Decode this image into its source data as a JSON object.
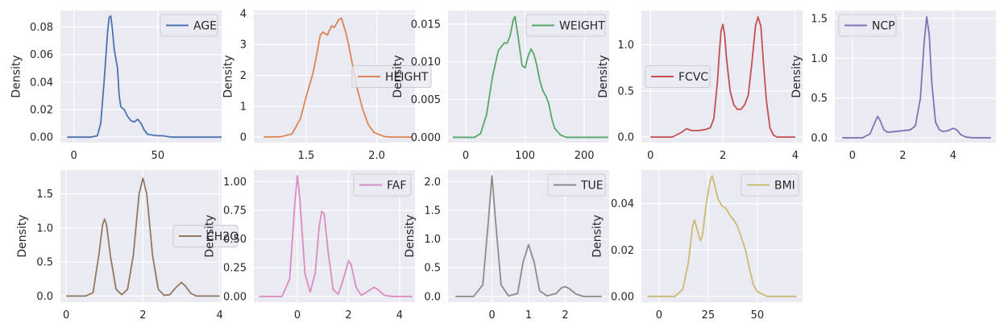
{
  "figure": {
    "theme_background": "#EAEAF2",
    "grid_color": "#FFFFFF"
  },
  "chart_data": [
    {
      "type": "line",
      "name": "AGE",
      "color": "#4C72B0",
      "ylabel": "Density",
      "xlim": [
        -8,
        88
      ],
      "ylim": [
        -0.004,
        0.092
      ],
      "xticks": [
        0,
        50
      ],
      "xtick_labels": [
        "0",
        "50"
      ],
      "yticks": [
        0,
        0.02,
        0.04,
        0.06,
        0.08
      ],
      "ytick_labels": [
        "0.00",
        "0.02",
        "0.04",
        "0.06",
        "0.08"
      ],
      "legend": {
        "label": "AGE",
        "loc": "top-right"
      },
      "grid": true,
      "points": [
        [
          -4,
          0
        ],
        [
          10,
          0
        ],
        [
          14,
          0.001
        ],
        [
          16,
          0.01
        ],
        [
          18,
          0.04
        ],
        [
          20,
          0.075
        ],
        [
          21,
          0.087
        ],
        [
          22,
          0.088
        ],
        [
          23,
          0.078
        ],
        [
          24,
          0.064
        ],
        [
          26,
          0.05
        ],
        [
          27,
          0.03
        ],
        [
          28,
          0.022
        ],
        [
          30,
          0.02
        ],
        [
          32,
          0.015
        ],
        [
          34,
          0.012
        ],
        [
          36,
          0.011
        ],
        [
          38,
          0.013
        ],
        [
          40,
          0.01
        ],
        [
          42,
          0.005
        ],
        [
          44,
          0.002
        ],
        [
          50,
          0.001
        ],
        [
          53,
          0.001
        ],
        [
          58,
          0
        ],
        [
          88,
          0
        ]
      ]
    },
    {
      "type": "line",
      "name": "HEIGHT",
      "color": "#DD8452",
      "ylabel": "Density",
      "xlim": [
        1.13,
        2.27
      ],
      "ylim": [
        -0.18,
        4.1
      ],
      "xticks": [
        1.5,
        2.0
      ],
      "xtick_labels": [
        "1.5",
        "2.0"
      ],
      "yticks": [
        0,
        1,
        2,
        3,
        4
      ],
      "ytick_labels": [
        "0",
        "1",
        "2",
        "3",
        "4"
      ],
      "legend": {
        "label": "HEIGHT",
        "loc": "center-right"
      },
      "grid": true,
      "points": [
        [
          1.2,
          0
        ],
        [
          1.32,
          0.01
        ],
        [
          1.4,
          0.1
        ],
        [
          1.46,
          0.6
        ],
        [
          1.5,
          1.3
        ],
        [
          1.55,
          2.1
        ],
        [
          1.58,
          2.8
        ],
        [
          1.6,
          3.3
        ],
        [
          1.62,
          3.4
        ],
        [
          1.65,
          3.3
        ],
        [
          1.68,
          3.6
        ],
        [
          1.7,
          3.55
        ],
        [
          1.73,
          3.8
        ],
        [
          1.75,
          3.85
        ],
        [
          1.78,
          3.4
        ],
        [
          1.8,
          3.0
        ],
        [
          1.83,
          2.3
        ],
        [
          1.86,
          1.6
        ],
        [
          1.9,
          0.9
        ],
        [
          1.94,
          0.4
        ],
        [
          1.98,
          0.15
        ],
        [
          2.05,
          0.02
        ],
        [
          2.1,
          0
        ],
        [
          2.25,
          0
        ]
      ]
    },
    {
      "type": "line",
      "name": "WEIGHT",
      "color": "#55A868",
      "ylabel": "Density",
      "xlim": [
        -30,
        242
      ],
      "ylim": [
        -0.0007,
        0.0168
      ],
      "xticks": [
        0,
        100,
        200
      ],
      "xtick_labels": [
        "0",
        "100",
        "200"
      ],
      "yticks": [
        0,
        0.005,
        0.01,
        0.015
      ],
      "ytick_labels": [
        "0.000",
        "0.005",
        "0.010",
        "0.015"
      ],
      "legend": {
        "label": "WEIGHT",
        "loc": "top-right"
      },
      "grid": true,
      "points": [
        [
          -22,
          0
        ],
        [
          15,
          0
        ],
        [
          25,
          0.0005
        ],
        [
          35,
          0.003
        ],
        [
          45,
          0.008
        ],
        [
          55,
          0.0115
        ],
        [
          65,
          0.0125
        ],
        [
          70,
          0.0125
        ],
        [
          75,
          0.0135
        ],
        [
          80,
          0.0155
        ],
        [
          83,
          0.016
        ],
        [
          88,
          0.0135
        ],
        [
          95,
          0.0095
        ],
        [
          100,
          0.0092
        ],
        [
          105,
          0.0107
        ],
        [
          110,
          0.0117
        ],
        [
          115,
          0.011
        ],
        [
          120,
          0.0095
        ],
        [
          125,
          0.0075
        ],
        [
          130,
          0.0062
        ],
        [
          135,
          0.0055
        ],
        [
          140,
          0.0045
        ],
        [
          145,
          0.0025
        ],
        [
          150,
          0.0012
        ],
        [
          160,
          0.0003
        ],
        [
          170,
          0
        ],
        [
          240,
          0
        ]
      ]
    },
    {
      "type": "line",
      "name": "FCVC",
      "color": "#C44E52",
      "ylabel": "Density",
      "xlim": [
        -0.25,
        4.2
      ],
      "ylim": [
        -0.06,
        1.37
      ],
      "xticks": [
        0,
        2,
        4
      ],
      "xtick_labels": [
        "0",
        "2",
        "4"
      ],
      "yticks": [
        0,
        0.5,
        1.0
      ],
      "ytick_labels": [
        "0.0",
        "0.5",
        "1.0"
      ],
      "legend": {
        "label": "FCVC",
        "loc": "center-left"
      },
      "grid": true,
      "points": [
        [
          0,
          0
        ],
        [
          0.6,
          0
        ],
        [
          0.85,
          0.05
        ],
        [
          1.0,
          0.09
        ],
        [
          1.15,
          0.07
        ],
        [
          1.3,
          0.07
        ],
        [
          1.5,
          0.08
        ],
        [
          1.65,
          0.1
        ],
        [
          1.75,
          0.2
        ],
        [
          1.85,
          0.6
        ],
        [
          1.9,
          0.9
        ],
        [
          1.95,
          1.15
        ],
        [
          2.0,
          1.22
        ],
        [
          2.05,
          1.1
        ],
        [
          2.1,
          0.85
        ],
        [
          2.2,
          0.5
        ],
        [
          2.3,
          0.35
        ],
        [
          2.4,
          0.3
        ],
        [
          2.5,
          0.3
        ],
        [
          2.6,
          0.35
        ],
        [
          2.7,
          0.45
        ],
        [
          2.8,
          0.8
        ],
        [
          2.9,
          1.2
        ],
        [
          2.97,
          1.3
        ],
        [
          3.05,
          1.2
        ],
        [
          3.12,
          0.8
        ],
        [
          3.2,
          0.4
        ],
        [
          3.3,
          0.1
        ],
        [
          3.4,
          0.02
        ],
        [
          3.5,
          0
        ],
        [
          4.0,
          0
        ]
      ]
    },
    {
      "type": "line",
      "name": "NCP",
      "color": "#8172B3",
      "ylabel": "Density",
      "xlim": [
        -0.7,
        5.7
      ],
      "ylim": [
        -0.06,
        1.6
      ],
      "xticks": [
        0,
        2,
        4
      ],
      "xtick_labels": [
        "0",
        "2",
        "4"
      ],
      "yticks": [
        0,
        0.5,
        1.0,
        1.5
      ],
      "ytick_labels": [
        "0.0",
        "0.5",
        "1.0",
        "1.5"
      ],
      "legend": {
        "label": "NCP",
        "loc": "top-left"
      },
      "grid": true,
      "points": [
        [
          -0.4,
          0
        ],
        [
          0.4,
          0
        ],
        [
          0.7,
          0.05
        ],
        [
          0.9,
          0.2
        ],
        [
          1.0,
          0.27
        ],
        [
          1.1,
          0.22
        ],
        [
          1.25,
          0.1
        ],
        [
          1.4,
          0.07
        ],
        [
          1.7,
          0.08
        ],
        [
          2.0,
          0.09
        ],
        [
          2.3,
          0.1
        ],
        [
          2.5,
          0.15
        ],
        [
          2.7,
          0.5
        ],
        [
          2.85,
          1.2
        ],
        [
          2.95,
          1.52
        ],
        [
          3.05,
          1.3
        ],
        [
          3.15,
          0.7
        ],
        [
          3.3,
          0.2
        ],
        [
          3.45,
          0.1
        ],
        [
          3.6,
          0.08
        ],
        [
          3.8,
          0.09
        ],
        [
          4.0,
          0.12
        ],
        [
          4.15,
          0.1
        ],
        [
          4.3,
          0.04
        ],
        [
          4.5,
          0.01
        ],
        [
          4.8,
          0
        ],
        [
          5.5,
          0
        ]
      ]
    },
    {
      "type": "line",
      "name": "CH2O",
      "color": "#937860",
      "ylabel": "Density",
      "xlim": [
        -0.15,
        4.05
      ],
      "ylim": [
        -0.09,
        1.85
      ],
      "xticks": [
        0,
        2,
        4
      ],
      "xtick_labels": [
        "0",
        "2",
        "4"
      ],
      "yticks": [
        0,
        0.5,
        1.0,
        1.5
      ],
      "ytick_labels": [
        "0.0",
        "0.5",
        "1.0",
        "1.5"
      ],
      "legend": {
        "label": "CH2O",
        "loc": "center-right"
      },
      "grid": true,
      "points": [
        [
          0,
          0
        ],
        [
          0.5,
          0
        ],
        [
          0.7,
          0.05
        ],
        [
          0.85,
          0.6
        ],
        [
          0.95,
          1.05
        ],
        [
          1.0,
          1.13
        ],
        [
          1.05,
          1.05
        ],
        [
          1.15,
          0.6
        ],
        [
          1.3,
          0.1
        ],
        [
          1.45,
          0.02
        ],
        [
          1.6,
          0.1
        ],
        [
          1.75,
          0.6
        ],
        [
          1.9,
          1.5
        ],
        [
          2.0,
          1.73
        ],
        [
          2.1,
          1.5
        ],
        [
          2.25,
          0.6
        ],
        [
          2.4,
          0.1
        ],
        [
          2.55,
          0.01
        ],
        [
          2.7,
          0.02
        ],
        [
          2.85,
          0.12
        ],
        [
          3.0,
          0.2
        ],
        [
          3.1,
          0.15
        ],
        [
          3.25,
          0.04
        ],
        [
          3.4,
          0
        ],
        [
          4.0,
          0
        ]
      ]
    },
    {
      "type": "line",
      "name": "FAF",
      "color": "#DA8BC3",
      "ylabel": "Density",
      "xlim": [
        -1.7,
        4.6
      ],
      "ylim": [
        -0.05,
        1.1
      ],
      "xticks": [
        0,
        2,
        4
      ],
      "xtick_labels": [
        "0",
        "2",
        "4"
      ],
      "yticks": [
        0,
        0.25,
        0.5,
        0.75,
        1.0
      ],
      "ytick_labels": [
        "0.00",
        "0.25",
        "0.50",
        "0.75",
        "1.00"
      ],
      "legend": {
        "label": "FAF",
        "loc": "top-right"
      },
      "grid": true,
      "points": [
        [
          -1.5,
          0
        ],
        [
          -0.6,
          0
        ],
        [
          -0.3,
          0.15
        ],
        [
          -0.1,
          0.8
        ],
        [
          0,
          1.05
        ],
        [
          0.1,
          0.85
        ],
        [
          0.3,
          0.2
        ],
        [
          0.5,
          0.04
        ],
        [
          0.7,
          0.2
        ],
        [
          0.85,
          0.6
        ],
        [
          0.95,
          0.74
        ],
        [
          1.05,
          0.72
        ],
        [
          1.2,
          0.4
        ],
        [
          1.4,
          0.06
        ],
        [
          1.6,
          0.02
        ],
        [
          1.8,
          0.15
        ],
        [
          2.0,
          0.31
        ],
        [
          2.1,
          0.28
        ],
        [
          2.3,
          0.08
        ],
        [
          2.5,
          0.01
        ],
        [
          2.8,
          0.05
        ],
        [
          3.0,
          0.08
        ],
        [
          3.15,
          0.06
        ],
        [
          3.4,
          0.01
        ],
        [
          3.7,
          0
        ],
        [
          4.5,
          0
        ]
      ]
    },
    {
      "type": "line",
      "name": "TUE",
      "color": "#8C8C8C",
      "ylabel": "Density",
      "xlim": [
        -1.2,
        3.2
      ],
      "ylim": [
        -0.1,
        2.2
      ],
      "xticks": [
        0,
        1,
        2
      ],
      "xtick_labels": [
        "0",
        "1",
        "2"
      ],
      "yticks": [
        0,
        0.5,
        1.0,
        1.5,
        2.0
      ],
      "ytick_labels": [
        "0.0",
        "0.5",
        "1.0",
        "1.5",
        "2.0"
      ],
      "legend": {
        "label": "TUE",
        "loc": "top-right"
      },
      "grid": true,
      "points": [
        [
          -1.0,
          0
        ],
        [
          -0.5,
          0
        ],
        [
          -0.25,
          0.2
        ],
        [
          -0.1,
          1.3
        ],
        [
          0,
          2.1
        ],
        [
          0.1,
          1.3
        ],
        [
          0.25,
          0.2
        ],
        [
          0.45,
          0.01
        ],
        [
          0.7,
          0.05
        ],
        [
          0.85,
          0.6
        ],
        [
          1.0,
          0.9
        ],
        [
          1.15,
          0.6
        ],
        [
          1.3,
          0.1
        ],
        [
          1.5,
          0.01
        ],
        [
          1.75,
          0.05
        ],
        [
          1.9,
          0.15
        ],
        [
          2.0,
          0.17
        ],
        [
          2.1,
          0.14
        ],
        [
          2.3,
          0.04
        ],
        [
          2.5,
          0
        ],
        [
          3.0,
          0
        ]
      ]
    },
    {
      "type": "line",
      "name": "BMI",
      "color": "#CCB974",
      "ylabel": "Density",
      "xlim": [
        -9,
        73
      ],
      "ylim": [
        -0.0025,
        0.0545
      ],
      "xticks": [
        0,
        25,
        50
      ],
      "xtick_labels": [
        "0",
        "25",
        "50"
      ],
      "yticks": [
        0,
        0.02,
        0.04
      ],
      "ytick_labels": [
        "0.00",
        "0.02",
        "0.04"
      ],
      "legend": {
        "label": "BMI",
        "loc": "top-right"
      },
      "grid": true,
      "points": [
        [
          -6,
          0
        ],
        [
          8,
          0
        ],
        [
          12,
          0.003
        ],
        [
          15,
          0.015
        ],
        [
          17,
          0.03
        ],
        [
          18,
          0.033
        ],
        [
          20,
          0.027
        ],
        [
          21,
          0.024
        ],
        [
          22,
          0.026
        ],
        [
          24,
          0.04
        ],
        [
          26,
          0.05
        ],
        [
          27,
          0.052
        ],
        [
          28,
          0.049
        ],
        [
          30,
          0.042
        ],
        [
          32,
          0.039
        ],
        [
          34,
          0.038
        ],
        [
          36,
          0.035
        ],
        [
          38,
          0.033
        ],
        [
          40,
          0.03
        ],
        [
          42,
          0.025
        ],
        [
          44,
          0.02
        ],
        [
          46,
          0.012
        ],
        [
          48,
          0.005
        ],
        [
          50,
          0.002
        ],
        [
          55,
          0
        ],
        [
          70,
          0
        ]
      ]
    }
  ]
}
